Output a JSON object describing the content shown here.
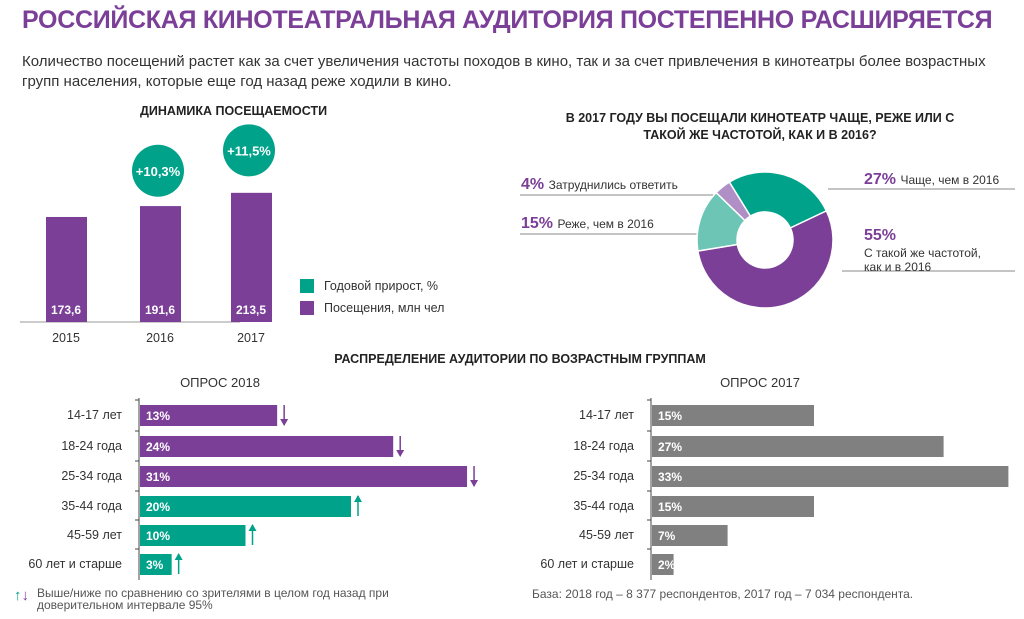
{
  "title": "РОССИЙСКАЯ КИНОТЕАТРАЛЬНАЯ АУДИТОРИЯ ПОСТЕПЕННО РАСШИРЯЕТСЯ",
  "subtitle": "Количество посещений растет как за счет увеличения частоты походов в кино, так и за счет привлечения в кинотеатры более возрастных групп населения, которые еще год назад реже ходили в кино.",
  "colors": {
    "purple": "#7b3f98",
    "green": "#00a38a",
    "light_teal": "#6cc5b5",
    "light_purple": "#b08fc7",
    "gray": "#808080"
  },
  "chart_data": [
    {
      "type": "bar",
      "title": "ДИНАМИКА ПОСЕЩАЕМОСТИ",
      "categories": [
        "2015",
        "2016",
        "2017"
      ],
      "series": [
        {
          "name": "Посещения, млн чел",
          "values": [
            173.6,
            191.6,
            213.5
          ],
          "labels": [
            "173,6",
            "191,6",
            "213,5"
          ],
          "color": "#7b3f98"
        },
        {
          "name": "Годовой прирост, %",
          "values": [
            null,
            10.3,
            11.5
          ],
          "labels": [
            "",
            "+10,3%",
            "+11,5%"
          ],
          "color": "#00a38a"
        }
      ],
      "legend": "right"
    },
    {
      "type": "pie",
      "title": "В 2017 ГОДУ ВЫ ПОСЕЩАЛИ КИНОТЕАТР ЧАЩЕ, РЕЖЕ ИЛИ С ТАКОЙ ЖЕ ЧАСТОТОЙ, КАК И В 2016?",
      "slices": [
        {
          "label": "Чаще, чем в 2016",
          "value": 27,
          "pct": "27%",
          "color": "#00a38a"
        },
        {
          "label": "С такой же частотой, как и в 2016",
          "value": 55,
          "pct": "55%",
          "color": "#7b3f98"
        },
        {
          "label": "Реже, чем в 2016",
          "value": 15,
          "pct": "15%",
          "color": "#6cc5b5"
        },
        {
          "label": "Затруднились ответить",
          "value": 4,
          "pct": "4%",
          "color": "#b08fc7"
        }
      ]
    },
    {
      "type": "bar",
      "orientation": "horizontal",
      "title": "РАСПРЕДЕЛЕНИЕ АУДИТОРИИ ПО ВОЗРАСТНЫМ ГРУППАМ",
      "subtitle": "ОПРОС 2018",
      "categories": [
        "14-17 лет",
        "18-24 года",
        "25-34 года",
        "35-44 года",
        "45-59 лет",
        "60 лет и старше"
      ],
      "values": [
        13,
        24,
        31,
        20,
        10,
        3
      ],
      "labels": [
        "13%",
        "24%",
        "31%",
        "20%",
        "10%",
        "3%"
      ],
      "trend": [
        "down",
        "down",
        "down",
        "up",
        "up",
        "up"
      ]
    },
    {
      "type": "bar",
      "orientation": "horizontal",
      "subtitle": "ОПРОС 2017",
      "categories": [
        "14-17 лет",
        "18-24 года",
        "25-34 года",
        "35-44 года",
        "45-59 лет",
        "60 лет и старше"
      ],
      "values": [
        15,
        27,
        33,
        15,
        7,
        2
      ],
      "labels": [
        "15%",
        "27%",
        "33%",
        "15%",
        "7%",
        "2%"
      ],
      "color": "#808080"
    }
  ],
  "pie_label_extra": "С такой же частотой,",
  "pie_label_extra2": "как и в 2016",
  "footnote": "Выше/ниже по сравнению со зрителями в целом год назад при доверительном интервале 95%",
  "base_note": "База: 2018 год – 8 377 респондентов, 2017 год – 7 034 респондента."
}
